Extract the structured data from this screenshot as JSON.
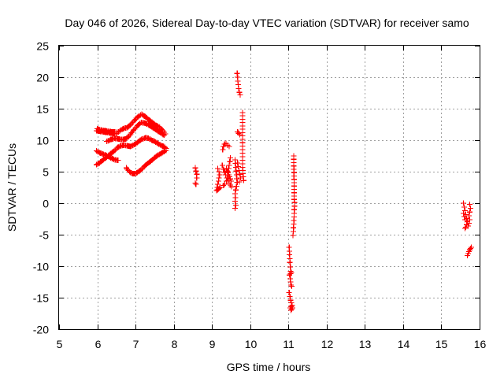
{
  "chart_data": {
    "type": "scatter",
    "title": "Day 046 of 2026, Sidereal Day-to-day VTEC variation (SDTVAR) for receiver samo",
    "xlabel": "GPS time / hours",
    "ylabel": "SDTVAR / TECUs",
    "xlim": [
      5,
      16
    ],
    "ylim": [
      -20,
      25
    ],
    "xticks": [
      5,
      6,
      7,
      8,
      9,
      10,
      11,
      12,
      13,
      14,
      15,
      16
    ],
    "yticks": [
      -20,
      -15,
      -10,
      -5,
      0,
      5,
      10,
      15,
      20,
      25
    ],
    "grid": true,
    "marker": "+",
    "series": [
      {
        "name": "SDTVAR",
        "color": "#ff0000",
        "segments": [
          [
            [
              5.98,
              11.5
            ],
            [
              6.08,
              11.4
            ],
            [
              6.18,
              11.3
            ],
            [
              6.28,
              11.2
            ],
            [
              6.38,
              11.1
            ],
            [
              6.48,
              11.0
            ],
            [
              6.55,
              11.3
            ],
            [
              6.62,
              11.6
            ],
            [
              6.7,
              11.9
            ],
            [
              6.78,
              12.0
            ],
            [
              6.86,
              12.4
            ],
            [
              6.94,
              12.9
            ],
            [
              7.02,
              13.5
            ],
            [
              7.1,
              13.9
            ],
            [
              7.16,
              14.1
            ],
            [
              7.24,
              13.8
            ],
            [
              7.32,
              13.4
            ],
            [
              7.4,
              13.0
            ],
            [
              7.48,
              12.6
            ],
            [
              7.56,
              12.3
            ],
            [
              7.64,
              12.0
            ],
            [
              7.72,
              11.5
            ],
            [
              7.78,
              11.0
            ]
          ],
          [
            [
              6.0,
              11.8
            ],
            [
              6.1,
              11.6
            ],
            [
              6.2,
              11.5
            ],
            [
              6.3,
              11.4
            ],
            [
              6.4,
              11.3
            ],
            [
              6.48,
              11.3
            ]
          ],
          [
            [
              6.25,
              9.8
            ],
            [
              6.35,
              10.1
            ],
            [
              6.45,
              10.3
            ],
            [
              6.55,
              10.2
            ],
            [
              6.65,
              10.1
            ],
            [
              6.75,
              10.2
            ],
            [
              6.85,
              10.8
            ],
            [
              6.95,
              11.6
            ],
            [
              7.05,
              12.3
            ],
            [
              7.15,
              12.8
            ],
            [
              7.25,
              12.7
            ],
            [
              7.35,
              12.4
            ],
            [
              7.45,
              12.0
            ],
            [
              7.55,
              11.6
            ],
            [
              7.65,
              11.2
            ],
            [
              7.75,
              10.8
            ]
          ],
          [
            [
              5.98,
              8.3
            ],
            [
              6.06,
              8.0
            ],
            [
              6.14,
              7.8
            ],
            [
              6.22,
              7.6
            ],
            [
              6.3,
              7.4
            ],
            [
              6.38,
              7.1
            ],
            [
              6.46,
              6.9
            ],
            [
              6.54,
              6.8
            ]
          ],
          [
            [
              5.98,
              6.1
            ],
            [
              6.06,
              6.4
            ],
            [
              6.14,
              6.8
            ],
            [
              6.22,
              7.2
            ],
            [
              6.3,
              7.6
            ],
            [
              6.38,
              8.0
            ],
            [
              6.46,
              8.4
            ],
            [
              6.54,
              8.9
            ],
            [
              6.62,
              9.1
            ],
            [
              6.7,
              9.2
            ],
            [
              6.78,
              9.1
            ],
            [
              6.86,
              9.0
            ],
            [
              6.94,
              9.2
            ],
            [
              7.02,
              9.5
            ],
            [
              7.1,
              9.9
            ],
            [
              7.18,
              10.2
            ],
            [
              7.26,
              10.4
            ],
            [
              7.34,
              10.3
            ],
            [
              7.42,
              10.0
            ],
            [
              7.5,
              9.8
            ],
            [
              7.58,
              9.5
            ],
            [
              7.66,
              9.2
            ],
            [
              7.74,
              9.0
            ],
            [
              7.8,
              8.7
            ]
          ],
          [
            [
              6.76,
              5.6
            ],
            [
              6.84,
              5.0
            ],
            [
              6.92,
              4.7
            ],
            [
              7.0,
              4.7
            ],
            [
              7.08,
              5.0
            ],
            [
              7.16,
              5.4
            ],
            [
              7.24,
              5.9
            ],
            [
              7.32,
              6.3
            ],
            [
              7.4,
              6.7
            ],
            [
              7.48,
              7.1
            ],
            [
              7.56,
              7.5
            ],
            [
              7.64,
              7.8
            ],
            [
              7.72,
              8.1
            ],
            [
              7.8,
              8.4
            ]
          ],
          [
            [
              8.56,
              5.6
            ],
            [
              8.58,
              5.1
            ],
            [
              8.6,
              4.6
            ],
            [
              8.6,
              4.0
            ]
          ],
          [
            [
              8.56,
              3.2
            ],
            [
              8.58,
              3.0
            ]
          ],
          [
            [
              9.15,
              5.5
            ],
            [
              9.18,
              5.0
            ],
            [
              9.2,
              4.5
            ],
            [
              9.12,
              2.0
            ],
            [
              9.22,
              2.5
            ]
          ],
          [
            [
              9.27,
              6.0
            ],
            [
              9.3,
              5.4
            ],
            [
              9.33,
              4.9
            ],
            [
              9.36,
              4.5
            ],
            [
              9.39,
              4.0
            ],
            [
              9.42,
              3.6
            ],
            [
              9.45,
              3.2
            ],
            [
              9.48,
              2.9
            ],
            [
              9.51,
              2.6
            ]
          ],
          [
            [
              9.28,
              8.5
            ],
            [
              9.3,
              9.0
            ],
            [
              9.33,
              9.4
            ],
            [
              9.37,
              9.5
            ],
            [
              9.41,
              9.2
            ],
            [
              9.45,
              9.0
            ]
          ],
          [
            [
              9.3,
              2.8
            ],
            [
              9.34,
              3.0
            ],
            [
              9.38,
              3.5
            ],
            [
              9.42,
              5.0
            ],
            [
              9.45,
              6.0
            ],
            [
              9.48,
              7.2
            ]
          ],
          [
            [
              9.38,
              5.5
            ],
            [
              9.42,
              4.8
            ],
            [
              9.46,
              4.2
            ],
            [
              9.5,
              3.5
            ]
          ],
          [
            [
              9.6,
              6.9
            ],
            [
              9.61,
              6.3
            ],
            [
              9.62,
              5.7
            ],
            [
              9.63,
              5.1
            ],
            [
              9.64,
              4.5
            ],
            [
              9.65,
              3.9
            ],
            [
              9.66,
              3.3
            ],
            [
              9.64,
              2.7
            ],
            [
              9.62,
              2.1
            ],
            [
              9.6,
              1.5
            ],
            [
              9.61,
              0.9
            ],
            [
              9.6,
              0.3
            ],
            [
              9.62,
              -0.3
            ],
            [
              9.6,
              -0.8
            ]
          ],
          [
            [
              9.67,
              6.4
            ],
            [
              9.69,
              5.8
            ],
            [
              9.71,
              5.2
            ],
            [
              9.73,
              4.6
            ],
            [
              9.75,
              4.0
            ],
            [
              9.72,
              3.4
            ]
          ],
          [
            [
              9.66,
              20.6
            ],
            [
              9.67,
              20.0
            ],
            [
              9.68,
              19.4
            ],
            [
              9.69,
              18.8
            ],
            [
              9.7,
              18.2
            ],
            [
              9.72,
              17.6
            ],
            [
              9.74,
              17.2
            ]
          ],
          [
            [
              9.67,
              11.3
            ],
            [
              9.7,
              11.1
            ],
            [
              9.73,
              10.9
            ]
          ],
          [
            [
              9.8,
              14.4
            ],
            [
              9.8,
              9.6
            ],
            [
              9.8,
              5.7
            ],
            [
              9.82,
              4.2
            ],
            [
              9.83,
              3.6
            ]
          ],
          [
            [
              11.14,
              7.5
            ],
            [
              11.15,
              0.6
            ],
            [
              11.16,
              0.1
            ],
            [
              11.14,
              -3.3
            ],
            [
              11.12,
              -5.1
            ]
          ],
          [
            [
              11.02,
              -7.0
            ],
            [
              11.04,
              -9.4
            ],
            [
              11.06,
              -10.8
            ],
            [
              11.08,
              -11.0
            ],
            [
              11.03,
              -11.4
            ],
            [
              11.05,
              -12.0
            ],
            [
              11.07,
              -13.0
            ],
            [
              11.09,
              -13.2
            ]
          ],
          [
            [
              11.02,
              -14.2
            ],
            [
              11.04,
              -14.8
            ],
            [
              11.06,
              -15.4
            ],
            [
              11.08,
              -15.8
            ],
            [
              11.1,
              -16.2
            ],
            [
              11.05,
              -16.6
            ],
            [
              11.07,
              -17.0
            ],
            [
              11.09,
              -16.8
            ],
            [
              11.11,
              -16.6
            ]
          ],
          [
            [
              15.58,
              0.0
            ],
            [
              15.6,
              -0.6
            ],
            [
              15.62,
              -1.2
            ],
            [
              15.64,
              -1.8
            ],
            [
              15.66,
              -2.4
            ],
            [
              15.68,
              -2.9
            ],
            [
              15.66,
              -3.4
            ],
            [
              15.64,
              -3.8
            ],
            [
              15.62,
              -4.0
            ]
          ],
          [
            [
              15.74,
              -0.2
            ],
            [
              15.76,
              -0.8
            ],
            [
              15.74,
              -1.4
            ],
            [
              15.72,
              -2.0
            ],
            [
              15.74,
              -2.6
            ],
            [
              15.72,
              -3.2
            ],
            [
              15.7,
              -3.6
            ]
          ],
          [
            [
              15.58,
              -1.6
            ],
            [
              15.6,
              -2.1
            ],
            [
              15.62,
              -2.6
            ]
          ],
          [
            [
              15.68,
              -8.3
            ],
            [
              15.7,
              -8.0
            ],
            [
              15.72,
              -7.7
            ],
            [
              15.74,
              -7.4
            ],
            [
              15.76,
              -7.2
            ],
            [
              15.78,
              -7.0
            ]
          ]
        ]
      }
    ]
  }
}
